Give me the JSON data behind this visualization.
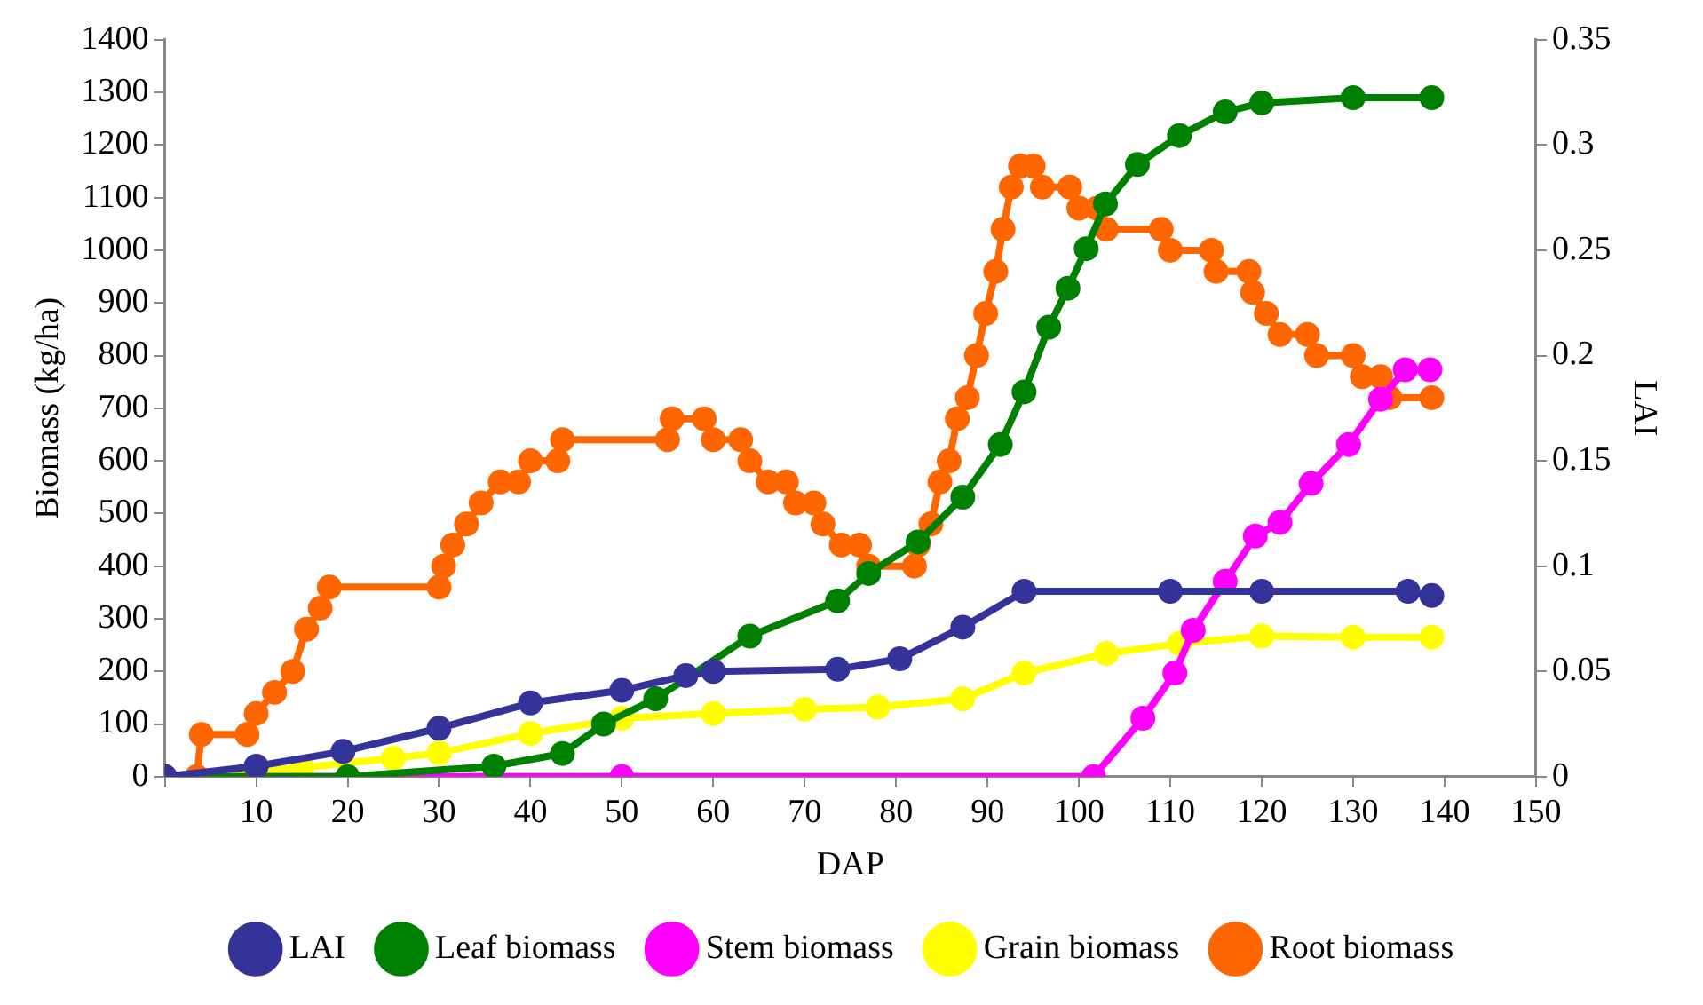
{
  "chart_data": {
    "type": "line",
    "xlabel": "DAP",
    "ylabel": "Biomass (kg/ha)",
    "y2label": "LAI",
    "xlim": [
      0,
      150
    ],
    "xticks": [
      {
        "value": 0,
        "label": null
      },
      10,
      20,
      30,
      40,
      50,
      60,
      70,
      80,
      90,
      100,
      110,
      120,
      130,
      140,
      150
    ],
    "ylim": [
      0,
      1400
    ],
    "yticks": [
      0,
      100,
      200,
      300,
      400,
      500,
      600,
      700,
      800,
      900,
      1000,
      1100,
      1200,
      1300,
      1400
    ],
    "y2lim": [
      0,
      0.35
    ],
    "y2ticks": [
      0,
      0.05,
      0.1,
      0.15,
      0.2,
      0.25,
      0.3,
      0.35
    ],
    "grid": false,
    "legend": "bottom",
    "marker": "circle",
    "line_style": "solid",
    "series": [
      {
        "name": "LAI",
        "color": "#333399",
        "axis": "y2",
        "x": [
          0,
          10,
          19.5,
          30,
          40,
          50,
          57,
          60,
          73.6,
          80.4,
          87.3,
          94,
          110,
          120,
          136,
          138.6
        ],
        "values": [
          0,
          0.005,
          0.012,
          0.023,
          0.035,
          0.041,
          0.048,
          0.05,
          0.051,
          0.056,
          0.071,
          0.088,
          0.088,
          0.088,
          0.088,
          0.086
        ]
      },
      {
        "name": "Leaf biomass",
        "color": "#008000",
        "x": [
          0,
          20,
          36,
          43.5,
          48,
          53.7,
          64,
          73.6,
          77,
          82.4,
          87.3,
          91.4,
          94,
          96.7,
          98.8,
          100.8,
          102.9,
          106.4,
          111,
          116,
          120,
          130,
          138.6
        ],
        "values": [
          0,
          0,
          20,
          44,
          100,
          148,
          267,
          334,
          386,
          446,
          531,
          631,
          731,
          854,
          928,
          1003,
          1088,
          1163,
          1218,
          1263,
          1280,
          1290,
          1290
        ]
      },
      {
        "name": "Stem biomass",
        "color": "#ff00ff",
        "x": [
          0,
          50,
          101.6,
          107,
          110.5,
          112.5,
          116,
          119.3,
          122,
          125.4,
          129.5,
          133,
          135.7,
          138.4
        ],
        "values": [
          0,
          0,
          0,
          111,
          197,
          278,
          371,
          457,
          483,
          557,
          631,
          717,
          773,
          773
        ]
      },
      {
        "name": "Grain biomass",
        "color": "#ffff00",
        "x": [
          0,
          15,
          25,
          30,
          40,
          50,
          60,
          70,
          78,
          87.3,
          94,
          103,
          111,
          120,
          130,
          138.6
        ],
        "values": [
          0,
          17,
          35,
          45,
          82,
          111,
          120,
          128,
          132,
          148,
          197,
          234,
          253,
          267,
          265,
          265
        ]
      },
      {
        "name": "Root biomass",
        "color": "#ff6600",
        "x": [
          0,
          3.5,
          4,
          9,
          10,
          12,
          14,
          15.5,
          17,
          18,
          30,
          30.5,
          31.5,
          33,
          34.6,
          36.7,
          38.7,
          40,
          43,
          43.5,
          55,
          55.5,
          59,
          60,
          63,
          64,
          66,
          68,
          69,
          71,
          72,
          74,
          76,
          77,
          82,
          82.4,
          83.8,
          84.8,
          85.8,
          86.7,
          87.8,
          88.8,
          89.8,
          90.9,
          91.7,
          92.6,
          93.6,
          95,
          96,
          99,
          100,
          102,
          103,
          109,
          110,
          114.5,
          115,
          118.6,
          119,
          120.5,
          122,
          125,
          126,
          130,
          131,
          133,
          134,
          138.6
        ],
        "values": [
          0,
          0,
          80,
          80,
          120,
          160,
          200,
          280,
          320,
          360,
          360,
          400,
          440,
          480,
          520,
          560,
          560,
          600,
          600,
          640,
          640,
          680,
          680,
          640,
          640,
          600,
          560,
          560,
          520,
          520,
          480,
          440,
          440,
          400,
          400,
          440,
          480,
          560,
          600,
          680,
          720,
          800,
          880,
          960,
          1040,
          1120,
          1160,
          1160,
          1120,
          1120,
          1080,
          1080,
          1040,
          1040,
          1000,
          1000,
          960,
          960,
          920,
          880,
          840,
          840,
          800,
          800,
          760,
          760,
          720,
          720
        ]
      }
    ]
  }
}
